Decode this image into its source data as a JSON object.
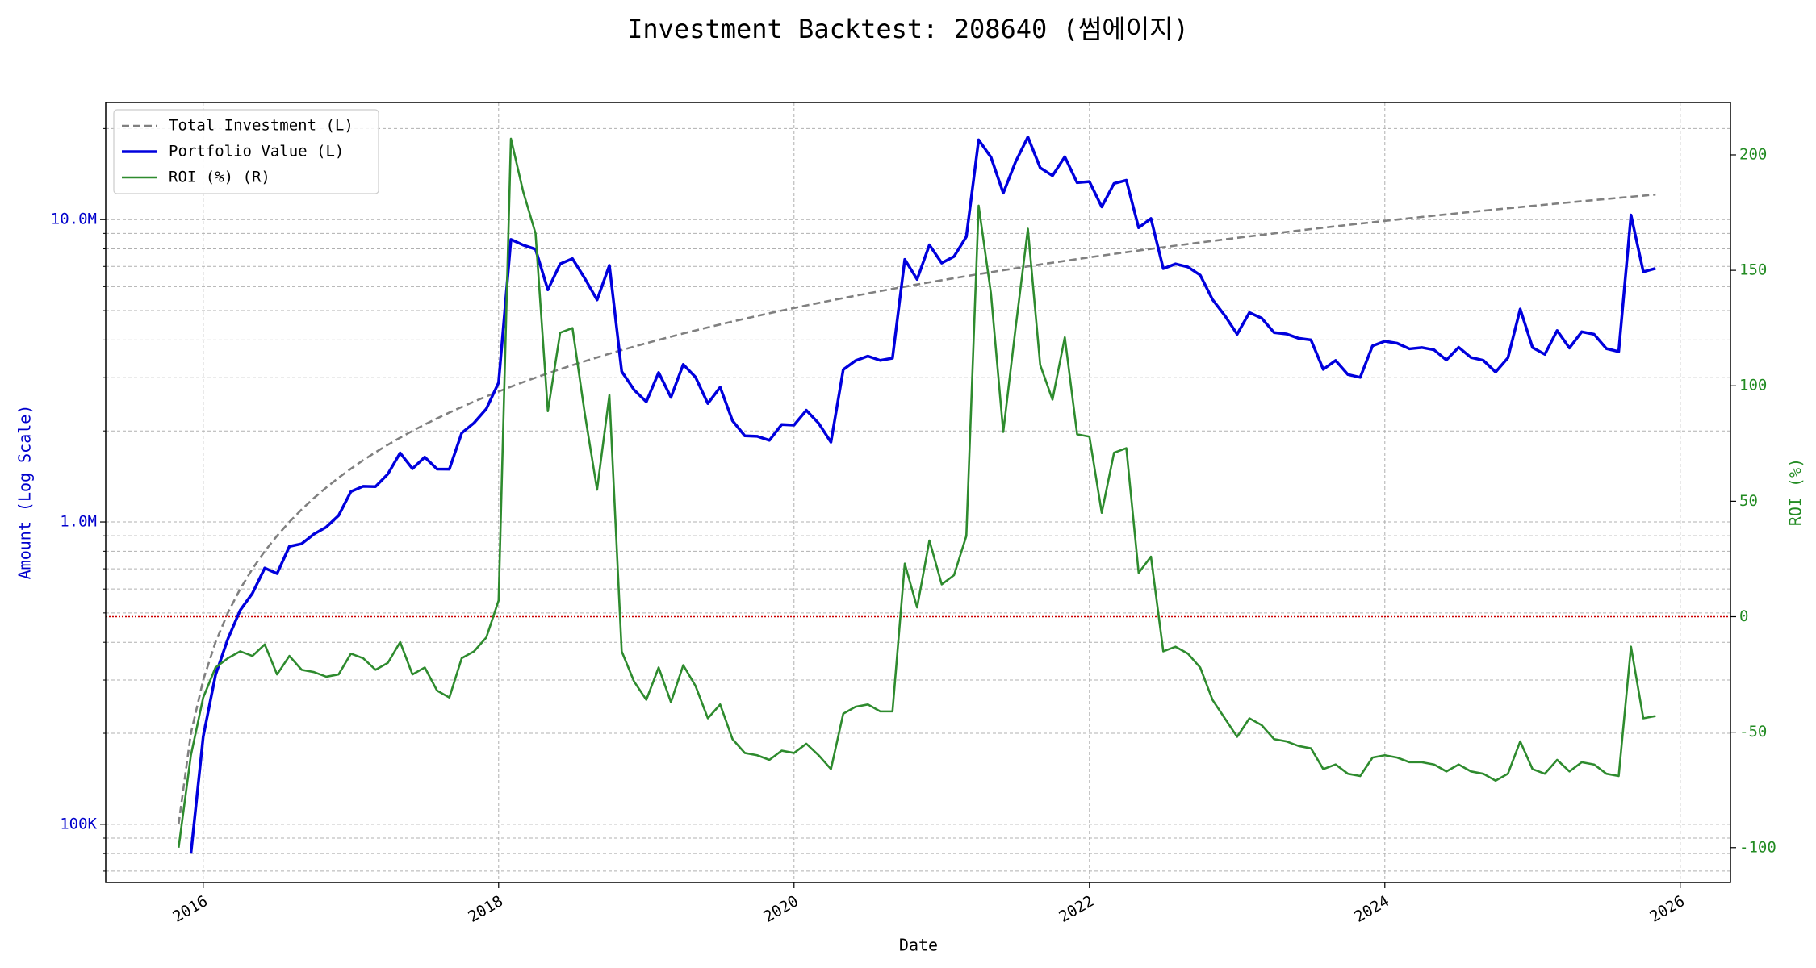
{
  "chart_data": {
    "type": "line",
    "title": "Investment Backtest: 208640 (썸에이지)",
    "xlabel": "Date",
    "ylabel": "Amount (Log Scale)",
    "y2label": "ROI (%)",
    "yscale": "log",
    "grid": true,
    "legend": "upper left",
    "ylabel_color": "#0000cc",
    "y2label_color": "#228b22",
    "reference_line": {
      "axis": "y2",
      "value": 0,
      "color": "#cc0000",
      "linestyle": "dotted"
    },
    "xlim": [
      2015.34,
      2026.34
    ],
    "xticks": [
      2016,
      2018,
      2020,
      2022,
      2024,
      2026
    ],
    "ylim": [
      64200,
      24400000
    ],
    "yticks": [
      {
        "value": 100000,
        "label": "100K"
      },
      {
        "value": 1000000,
        "label": "1.0M"
      },
      {
        "value": 10000000,
        "label": "10.0M"
      }
    ],
    "yminorticks": [
      70000,
      80000,
      90000,
      200000,
      300000,
      400000,
      500000,
      600000,
      700000,
      800000,
      900000,
      2000000,
      3000000,
      4000000,
      5000000,
      6000000,
      7000000,
      8000000,
      9000000,
      20000000
    ],
    "y2lim": [
      -115.1,
      222.7
    ],
    "y2ticks": [
      -100,
      -50,
      0,
      50,
      100,
      150,
      200
    ],
    "x": [
      "2015-11",
      "2015-12",
      "2016-01",
      "2016-02",
      "2016-03",
      "2016-04",
      "2016-05",
      "2016-06",
      "2016-07",
      "2016-08",
      "2016-09",
      "2016-10",
      "2016-11",
      "2016-12",
      "2017-01",
      "2017-02",
      "2017-03",
      "2017-04",
      "2017-05",
      "2017-06",
      "2017-07",
      "2017-08",
      "2017-09",
      "2017-10",
      "2017-11",
      "2017-12",
      "2018-01",
      "2018-02",
      "2018-03",
      "2018-04",
      "2018-05",
      "2018-06",
      "2018-07",
      "2018-08",
      "2018-09",
      "2018-10",
      "2018-11",
      "2018-12",
      "2019-01",
      "2019-02",
      "2019-03",
      "2019-04",
      "2019-05",
      "2019-06",
      "2019-07",
      "2019-08",
      "2019-09",
      "2019-10",
      "2019-11",
      "2019-12",
      "2020-01",
      "2020-02",
      "2020-03",
      "2020-04",
      "2020-05",
      "2020-06",
      "2020-07",
      "2020-08",
      "2020-09",
      "2020-10",
      "2020-11",
      "2020-12",
      "2021-01",
      "2021-02",
      "2021-03",
      "2021-04",
      "2021-05",
      "2021-06",
      "2021-07",
      "2021-08",
      "2021-09",
      "2021-10",
      "2021-11",
      "2021-12",
      "2022-01",
      "2022-02",
      "2022-03",
      "2022-04",
      "2022-05",
      "2022-06",
      "2022-07",
      "2022-08",
      "2022-09",
      "2022-10",
      "2022-11",
      "2022-12",
      "2023-01",
      "2023-02",
      "2023-03",
      "2023-04",
      "2023-05",
      "2023-06",
      "2023-07",
      "2023-08",
      "2023-09",
      "2023-10",
      "2023-11",
      "2023-12",
      "2024-01",
      "2024-02",
      "2024-03",
      "2024-04",
      "2024-05",
      "2024-06",
      "2024-07",
      "2024-08",
      "2024-09",
      "2024-10",
      "2024-11",
      "2024-12",
      "2025-01",
      "2025-02",
      "2025-03",
      "2025-04",
      "2025-05",
      "2025-06",
      "2025-07",
      "2025-08",
      "2025-09",
      "2025-10",
      "2025-11"
    ],
    "series": [
      {
        "name": "Total Investment (L)",
        "color": "#808080",
        "linestyle": "dashed",
        "axis": "y",
        "values": [
          100000,
          200000,
          300000,
          400000,
          500000,
          600000,
          700000,
          800000,
          900000,
          1000000,
          1100000,
          1200000,
          1300000,
          1400000,
          1500000,
          1600000,
          1700000,
          1800000,
          1900000,
          2000000,
          2100000,
          2200000,
          2300000,
          2400000,
          2500000,
          2600000,
          2700000,
          2800000,
          2900000,
          3000000,
          3100000,
          3200000,
          3300000,
          3400000,
          3500000,
          3600000,
          3700000,
          3800000,
          3900000,
          4000000,
          4100000,
          4200000,
          4300000,
          4400000,
          4500000,
          4600000,
          4700000,
          4800000,
          4900000,
          5000000,
          5100000,
          5200000,
          5300000,
          5400000,
          5500000,
          5600000,
          5700000,
          5800000,
          5900000,
          6000000,
          6100000,
          6200000,
          6300000,
          6400000,
          6500000,
          6600000,
          6700000,
          6800000,
          6900000,
          7000000,
          7100000,
          7200000,
          7300000,
          7400000,
          7500000,
          7600000,
          7700000,
          7800000,
          7900000,
          8000000,
          8100000,
          8200000,
          8300000,
          8400000,
          8500000,
          8600000,
          8700000,
          8800000,
          8900000,
          9000000,
          9100000,
          9200000,
          9300000,
          9400000,
          9500000,
          9600000,
          9700000,
          9800000,
          9900000,
          10000000,
          10100000,
          10200000,
          10300000,
          10400000,
          10500000,
          10600000,
          10700000,
          10800000,
          10900000,
          11000000,
          11100000,
          11200000,
          11300000,
          11400000,
          11500000,
          11600000,
          11700000,
          11800000,
          11900000,
          12000000,
          12100000
        ]
      },
      {
        "name": "Portfolio Value (L)",
        "color": "#0000dd",
        "linestyle": "solid",
        "axis": "y",
        "values": [
          null,
          80000,
          195000,
          312000,
          410000,
          510000,
          581000,
          704000,
          675000,
          830000,
          847000,
          912000,
          962000,
          1050000,
          1260000,
          1312000,
          1309000,
          1440000,
          1691000,
          1500000,
          1638000,
          1496000,
          1495000,
          1968000,
          2125000,
          2366000,
          2889000,
          8596000,
          8236000,
          7980000,
          5859000,
          7136000,
          7425000,
          6392000,
          5425000,
          7056000,
          3145000,
          2736000,
          2496000,
          3120000,
          2583000,
          3318000,
          3010000,
          2464000,
          2790000,
          2162000,
          1927000,
          1920000,
          1862000,
          2100000,
          2091000,
          2340000,
          2120000,
          1836000,
          3190000,
          3416000,
          3534000,
          3422000,
          3481000,
          7380000,
          6344000,
          8246000,
          7182000,
          7552000,
          8775000,
          18348000,
          16080000,
          12240000,
          15525000,
          18760000,
          14839000,
          13968000,
          16133000,
          13246000,
          13350000,
          11020000,
          13167000,
          13494000,
          9401000,
          10080000,
          6885000,
          7134000,
          6972000,
          6552000,
          5440000,
          4816000,
          4176000,
          4928000,
          4717000,
          4230000,
          4186000,
          4048000,
          3999000,
          3196000,
          3420000,
          3072000,
          3007000,
          3822000,
          3960000,
          3900000,
          3737000,
          3774000,
          3708000,
          3432000,
          3780000,
          3498000,
          3424000,
          3132000,
          3488000,
          5060000,
          3774000,
          3584000,
          4294000,
          3762000,
          4255000,
          4176000,
          3744000,
          3658000,
          10353000,
          6720000,
          6897000
        ]
      },
      {
        "name": "ROI (%) (R)",
        "color": "#2e8b2e",
        "linestyle": "solid",
        "axis": "y2",
        "values": [
          -100,
          -60,
          -35,
          -22,
          -18,
          -15,
          -17,
          -12,
          -25,
          -17,
          -23,
          -24,
          -26,
          -25,
          -16,
          -18,
          -23,
          -20,
          -11,
          -25,
          -22,
          -32,
          -35,
          -18,
          -15,
          -9,
          7,
          207,
          184,
          166,
          89,
          123,
          125,
          88,
          55,
          96,
          -15,
          -28,
          -36,
          -22,
          -37,
          -21,
          -30,
          -44,
          -38,
          -53,
          -59,
          -60,
          -62,
          -58,
          -59,
          -55,
          -60,
          -66,
          -42,
          -39,
          -38,
          -41,
          -41,
          23,
          4,
          33,
          14,
          18,
          35,
          178,
          140,
          80,
          125,
          168,
          109,
          94,
          121,
          79,
          78,
          45,
          71,
          73,
          19,
          26,
          -15,
          -13,
          -16,
          -22,
          -36,
          -44,
          -52,
          -44,
          -47,
          -53,
          -54,
          -56,
          -57,
          -66,
          -64,
          -68,
          -69,
          -61,
          -60,
          -61,
          -63,
          -63,
          -64,
          -67,
          -64,
          -67,
          -68,
          -71,
          -68,
          -54,
          -66,
          -68,
          -62,
          -67,
          -63,
          -64,
          -68,
          -69,
          -13,
          -44,
          -43
        ]
      }
    ]
  }
}
